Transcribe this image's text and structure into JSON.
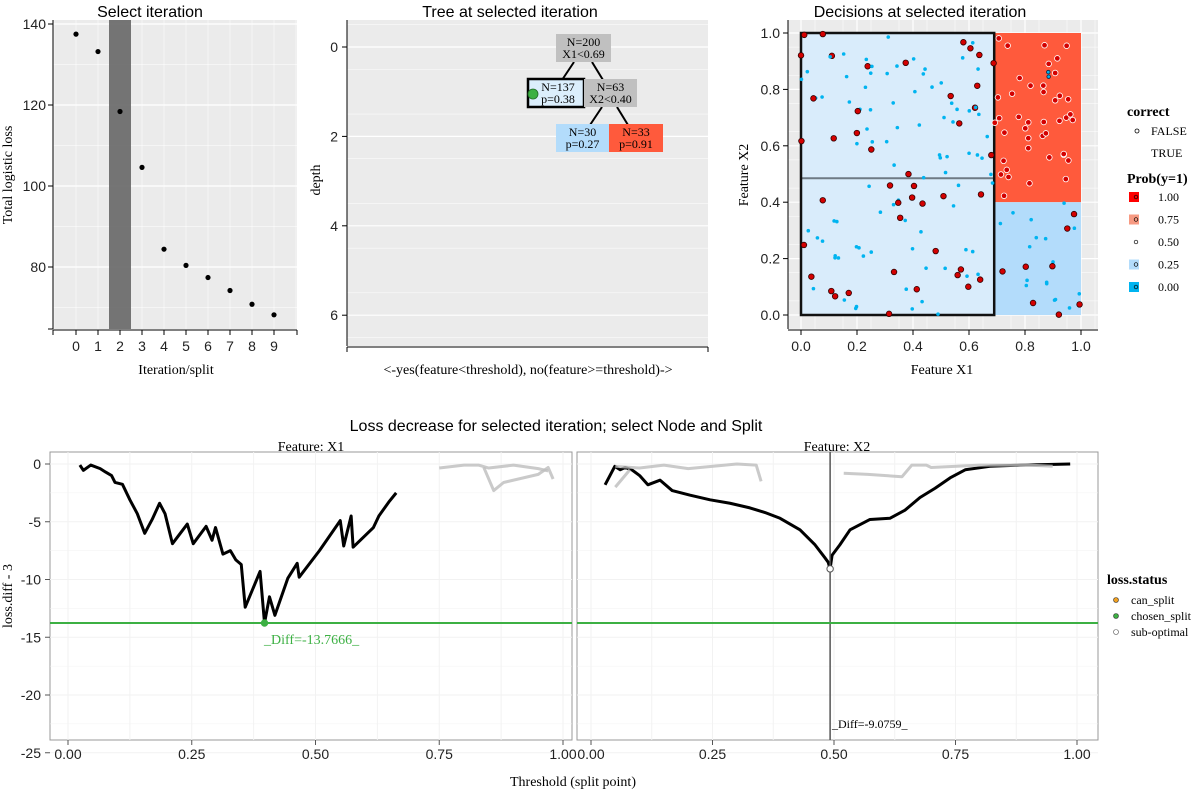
{
  "chart_data": [
    {
      "type": "scatter",
      "title": "Select iteration",
      "xlabel": "Iteration/split",
      "ylabel": "Total logistic loss",
      "x": [
        0,
        1,
        2,
        3,
        4,
        5,
        6,
        7,
        8,
        9
      ],
      "values": [
        137.5,
        133.2,
        118.4,
        104.6,
        84.4,
        80.4,
        77.4,
        74.2,
        70.8,
        68.2
      ],
      "xticks": [
        "0",
        "1",
        "2",
        "3",
        "4",
        "5",
        "6",
        "7",
        "8",
        "9"
      ],
      "yticks": [
        "80",
        "100",
        "120",
        "140"
      ],
      "selected_iteration": 2,
      "grid": true
    },
    {
      "type": "tree",
      "title": "Tree at selected iteration",
      "xlabel": "<-yes(feature<threshold), no(feature>=threshold)->",
      "ylabel": "depth",
      "yticks": [
        "0",
        "2",
        "4",
        "6"
      ],
      "nodes": [
        {
          "line1": "N=200",
          "line2": "X1<0.69",
          "color": "#c0c0c0"
        },
        {
          "line1": "N=137",
          "line2": "p=0.38",
          "color": "#dbeefc",
          "selected": true
        },
        {
          "line1": "N=63",
          "line2": "X2<0.40",
          "color": "#c0c0c0"
        },
        {
          "line1": "N=30",
          "line2": "p=0.27",
          "color": "#b3dcfb"
        },
        {
          "line1": "N=33",
          "line2": "p=0.91",
          "color": "#ff5a3c"
        }
      ]
    },
    {
      "type": "scatter",
      "title": "Decisions at selected iteration",
      "xlabel": "Feature X1",
      "ylabel": "Feature X2",
      "xticks": [
        "0.0",
        "0.2",
        "0.4",
        "0.6",
        "0.8",
        "1.0"
      ],
      "yticks": [
        "0.0",
        "0.2",
        "0.4",
        "0.6",
        "0.8",
        "1.0"
      ],
      "regions": [
        {
          "x": [
            0,
            0.69
          ],
          "y": [
            0,
            1
          ],
          "prob": 0.38,
          "color": "#d9ecfb"
        },
        {
          "x": [
            0.69,
            1
          ],
          "y": [
            0.4,
            1
          ],
          "prob": 0.91,
          "color": "#ff5a3c"
        },
        {
          "x": [
            0.69,
            1
          ],
          "y": [
            0,
            0.4
          ],
          "prob": 0.27,
          "color": "#b3dcfb"
        }
      ],
      "candidate_split_x2": 0.485,
      "legend": {
        "correct_title": "correct",
        "correct": [
          "FALSE",
          "TRUE"
        ],
        "prob_title": "Prob(y=1)",
        "prob": [
          {
            "label": "1.00",
            "color": "#ff0000"
          },
          {
            "label": "0.75",
            "color": "#f79a82"
          },
          {
            "label": "0.50",
            "color": "#ffffff"
          },
          {
            "label": "0.25",
            "color": "#b3dcfb"
          },
          {
            "label": "0.00",
            "color": "#00b4f0"
          }
        ]
      }
    },
    {
      "type": "line",
      "title": "Loss decrease for selected iteration; select Node and Split",
      "xlabel": "Threshold (split point)",
      "ylabel": "loss.diff - 3",
      "ylim": [
        -25,
        1
      ],
      "xlim": [
        0,
        1
      ],
      "xticks": [
        "0.00",
        "0.25",
        "0.50",
        "0.75",
        "1.00"
      ],
      "yticks": [
        "0",
        "-5",
        "-10",
        "-15",
        "-20",
        "-25"
      ],
      "chosen_loss": -13.7666,
      "facets": [
        {
          "strip": "Feature: X1",
          "annotation": "_Diff=-13.7666_",
          "annotation_color": "#3cb043",
          "marker": {
            "x": 0.397,
            "y": -13.7666,
            "status": "chosen_split"
          },
          "series": [
            {
              "style": "active",
              "points": [
                [
                  0.024,
                  -0.09
                ],
                [
                  0.031,
                  -0.55
                ],
                [
                  0.046,
                  -0.09
                ],
                [
                  0.065,
                  -0.4
                ],
                [
                  0.076,
                  -0.7
                ],
                [
                  0.088,
                  -1.0
                ],
                [
                  0.095,
                  -1.6
                ],
                [
                  0.11,
                  -1.76
                ],
                [
                  0.125,
                  -3.1
                ],
                [
                  0.14,
                  -4.3
                ],
                [
                  0.155,
                  -6.0
                ],
                [
                  0.17,
                  -4.8
                ],
                [
                  0.185,
                  -3.4
                ],
                [
                  0.196,
                  -4.3
                ],
                [
                  0.211,
                  -6.9
                ],
                [
                  0.241,
                  -5.2
                ],
                [
                  0.253,
                  -6.9
                ],
                [
                  0.279,
                  -5.4
                ],
                [
                  0.291,
                  -6.6
                ],
                [
                  0.298,
                  -5.5
                ],
                [
                  0.313,
                  -7.8
                ],
                [
                  0.328,
                  -7.5
                ],
                [
                  0.339,
                  -8.3
                ],
                [
                  0.35,
                  -8.7
                ],
                [
                  0.358,
                  -12.4
                ],
                [
                  0.388,
                  -9.3
                ],
                [
                  0.397,
                  -13.77
                ],
                [
                  0.407,
                  -11.5
                ],
                [
                  0.418,
                  -13.1
                ],
                [
                  0.444,
                  -9.9
                ],
                [
                  0.463,
                  -8.6
                ],
                [
                  0.467,
                  -9.8
                ],
                [
                  0.508,
                  -7.5
                ],
                [
                  0.55,
                  -4.9
                ],
                [
                  0.557,
                  -7.1
                ],
                [
                  0.572,
                  -4.5
                ],
                [
                  0.576,
                  -7.2
                ],
                [
                  0.617,
                  -5.5
                ],
                [
                  0.628,
                  -4.5
                ],
                [
                  0.648,
                  -3.3
                ],
                [
                  0.663,
                  -2.5
                ]
              ]
            },
            {
              "style": "inactive",
              "points": [
                [
                  0.75,
                  -0.35
                ],
                [
                  0.8,
                  -0.1
                ],
                [
                  0.83,
                  -0.1
                ],
                [
                  0.85,
                  -0.35
                ],
                [
                  0.9,
                  -0.1
                ],
                [
                  0.95,
                  -0.4
                ],
                [
                  0.97,
                  -0.6
                ]
              ]
            },
            {
              "style": "inactive",
              "points": [
                [
                  0.84,
                  -0.3
                ],
                [
                  0.86,
                  -2.3
                ],
                [
                  0.88,
                  -1.6
                ],
                [
                  0.95,
                  -0.9
                ],
                [
                  0.97,
                  -0.3
                ],
                [
                  0.98,
                  -1.3
                ]
              ]
            }
          ]
        },
        {
          "strip": "Feature: X2",
          "annotation": "_Diff=-9.0759_",
          "annotation_color": "#000000",
          "split_line_x": 0.492,
          "marker": {
            "x": 0.492,
            "y": -9.0759,
            "status": "sub-optimal"
          },
          "series": [
            {
              "style": "active",
              "points": [
                [
                  0.029,
                  -1.8
                ],
                [
                  0.049,
                  -0.2
                ],
                [
                  0.06,
                  -0.5
                ],
                [
                  0.07,
                  -0.3
                ],
                [
                  0.084,
                  -0.5
                ],
                [
                  0.1,
                  -1.0
                ],
                [
                  0.117,
                  -1.8
                ],
                [
                  0.142,
                  -1.4
                ],
                [
                  0.167,
                  -2.3
                ],
                [
                  0.204,
                  -2.7
                ],
                [
                  0.245,
                  -3.1
                ],
                [
                  0.286,
                  -3.4
                ],
                [
                  0.327,
                  -3.8
                ],
                [
                  0.358,
                  -4.2
                ],
                [
                  0.389,
                  -4.7
                ],
                [
                  0.43,
                  -5.7
                ],
                [
                  0.461,
                  -7.0
                ],
                [
                  0.481,
                  -8.1
                ],
                [
                  0.488,
                  -8.5
                ],
                [
                  0.492,
                  -9.08
                ],
                [
                  0.496,
                  -7.9
                ],
                [
                  0.512,
                  -7.0
                ],
                [
                  0.533,
                  -5.7
                ],
                [
                  0.574,
                  -4.8
                ],
                [
                  0.615,
                  -4.7
                ],
                [
                  0.646,
                  -4.0
                ],
                [
                  0.677,
                  -2.9
                ],
                [
                  0.708,
                  -2.1
                ],
                [
                  0.739,
                  -1.2
                ],
                [
                  0.77,
                  -0.5
                ],
                [
                  0.821,
                  -0.2
                ],
                [
                  0.883,
                  -0.1
                ],
                [
                  0.986,
                  0
                ]
              ]
            },
            {
              "style": "inactive",
              "points": [
                [
                  0.05,
                  -0.2
                ],
                [
                  0.1,
                  -0.35
                ],
                [
                  0.15,
                  -0.1
                ],
                [
                  0.2,
                  -0.4
                ],
                [
                  0.3,
                  0
                ],
                [
                  0.34,
                  -0.1
                ],
                [
                  0.35,
                  -1.5
                ]
              ]
            },
            {
              "style": "inactive",
              "points": [
                [
                  0.05,
                  -2.0
                ],
                [
                  0.08,
                  -0.5
                ]
              ]
            },
            {
              "style": "inactive",
              "points": [
                [
                  0.52,
                  -0.8
                ],
                [
                  0.57,
                  -0.9
                ],
                [
                  0.64,
                  -1.1
                ],
                [
                  0.66,
                  -0.1
                ],
                [
                  0.69,
                  -0.1
                ],
                [
                  0.7,
                  -0.3
                ],
                [
                  0.8,
                  -0.1
                ],
                [
                  0.9,
                  -0.1
                ],
                [
                  0.95,
                  -0.2
                ]
              ]
            }
          ]
        }
      ],
      "legend": {
        "title": "loss.status",
        "items": [
          {
            "label": "can_split",
            "color": "#f0a020"
          },
          {
            "label": "chosen_split",
            "color": "#3cb043"
          },
          {
            "label": "sub-optimal",
            "color": "#ffffff"
          }
        ]
      }
    }
  ]
}
